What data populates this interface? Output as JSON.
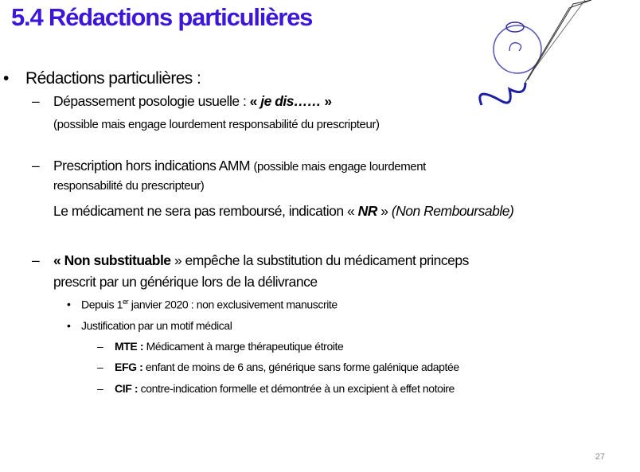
{
  "slide": {
    "title": "5.4 Rédactions particulières",
    "page_number": "27",
    "bullet": "•",
    "dash": "–",
    "heading": "Rédactions particulières :",
    "item1": {
      "text": "Dépassement posologie usuelle : ",
      "quote_open": "« ",
      "emph": "je dis……",
      "quote_close": " »",
      "note": "(possible mais engage lourdement responsabilité du prescripteur)"
    },
    "item2": {
      "text": "Prescription hors indications AMM ",
      "note1": "(possible mais engage lourdement",
      "note2": "responsabilité du prescripteur)",
      "line3_a": "Le médicament ne sera pas remboursé, indication « ",
      "line3_nr": "NR",
      "line3_b": " » ",
      "line3_c": "(Non Remboursable)"
    },
    "item3": {
      "bold": "« Non substituable",
      "text1": " » empêche la substitution du médicament princeps",
      "text2": "prescrit par un générique lors de la délivrance",
      "sub1_a": "Depuis 1",
      "sub1_sup": "er",
      "sub1_b": " janvier 2020 : non exclusivement manuscrite",
      "sub2": "Justification par un motif médical",
      "reasons": [
        {
          "code": "MTE :",
          "text": " Médicament à marge thérapeutique étroite"
        },
        {
          "code": "EFG :",
          "text": " enfant de moins de 6 ans, générique sans forme galénique adaptée"
        },
        {
          "code": "CIF :",
          "text": " contre-indication formelle et démontrée à un excipient à effet notoire"
        }
      ]
    }
  },
  "colors": {
    "title": "#3d17d9",
    "illustration": "#2a2aa8"
  },
  "illustration": "ink-bottle-and-quill-icon"
}
